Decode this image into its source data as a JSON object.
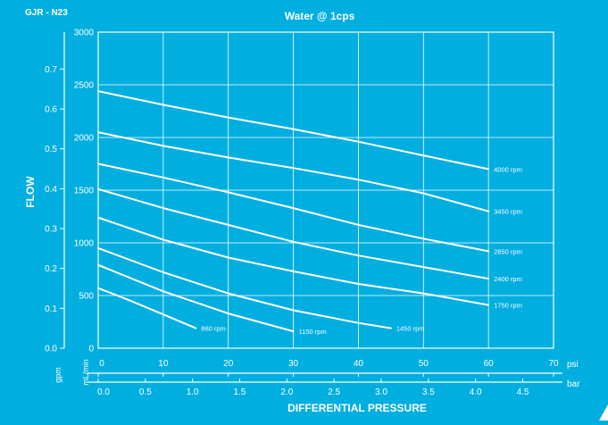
{
  "chart_data": {
    "type": "line",
    "title": "Water @ 1cps",
    "model": "GJR - N23",
    "ylabel": "FLOW",
    "xlabel": "DIFFERENTIAL PRESSURE",
    "y_left_unit": "gpm",
    "y_right_unit": "mL/min",
    "x_top_unit": "psi",
    "x_bottom_unit": "bar",
    "ylim_mlmin": [
      0,
      3000
    ],
    "xlim_psi": [
      0,
      60
    ],
    "grid": true,
    "y_mlmin_ticks": [
      "0",
      "500",
      "1000",
      "1500",
      "2000",
      "2500",
      "3000"
    ],
    "y_gpm_ticks": [
      "0.0",
      "0.1",
      "0.2",
      "0.3",
      "0.4",
      "0.5",
      "0.6",
      "0.7"
    ],
    "x_psi_ticks": [
      "0",
      "10",
      "20",
      "30",
      "40",
      "50",
      "60",
      "70"
    ],
    "x_bar_ticks": [
      "0.0",
      "0.5",
      "1.0",
      "1.5",
      "2.0",
      "2.5",
      "3.0",
      "3.5",
      "4.0",
      "4.5"
    ],
    "series": [
      {
        "name": "4000 rpm",
        "x": [
          0,
          10,
          20,
          30,
          40,
          50,
          60
        ],
        "y": [
          2440,
          2310,
          2190,
          2080,
          1960,
          1830,
          1700
        ]
      },
      {
        "name": "3450 rpm",
        "x": [
          0,
          10,
          20,
          30,
          40,
          50,
          60
        ],
        "y": [
          2050,
          1920,
          1810,
          1710,
          1600,
          1470,
          1300
        ]
      },
      {
        "name": "2850 rpm",
        "x": [
          0,
          10,
          20,
          30,
          40,
          50,
          60
        ],
        "y": [
          1750,
          1620,
          1480,
          1330,
          1170,
          1040,
          920
        ]
      },
      {
        "name": "2400 rpm",
        "x": [
          0,
          10,
          20,
          30,
          40,
          50,
          60
        ],
        "y": [
          1510,
          1330,
          1170,
          1010,
          880,
          770,
          660
        ]
      },
      {
        "name": "1750 rpm",
        "x": [
          0,
          10,
          20,
          30,
          40,
          50,
          60
        ],
        "y": [
          1240,
          1030,
          860,
          730,
          610,
          520,
          410
        ]
      },
      {
        "name": "1450 rpm",
        "x": [
          0,
          10,
          20,
          30,
          40,
          45
        ],
        "y": [
          950,
          720,
          520,
          360,
          240,
          190
        ]
      },
      {
        "name": "1150 rpm",
        "x": [
          0,
          10,
          20,
          30
        ],
        "y": [
          790,
          540,
          330,
          160
        ]
      },
      {
        "name": "860 rpm",
        "x": [
          0,
          5,
          10,
          15
        ],
        "y": [
          570,
          450,
          320,
          190
        ]
      }
    ]
  }
}
